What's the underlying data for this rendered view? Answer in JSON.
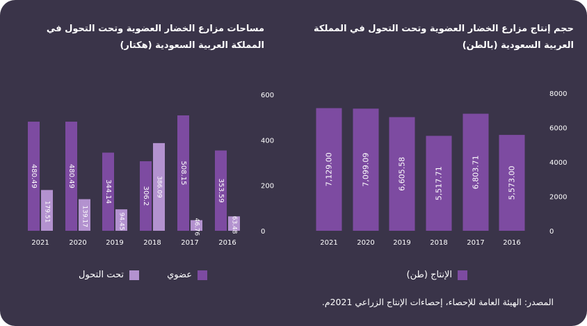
{
  "colors": {
    "background": "#3a3449",
    "organic": "#7d4ba1",
    "transition": "#b392cf",
    "production": "#7d4ba1"
  },
  "chart_data": [
    {
      "type": "bar",
      "title": "مساحات مزارع الخضار العضوية وتحت التحول في المملكة العربية السعودية (هكتار)",
      "categories": [
        "2021",
        "2020",
        "2019",
        "2018",
        "2017",
        "2016"
      ],
      "series": [
        {
          "name": "عضوي",
          "values": [
            480.49,
            480.49,
            344.14,
            306.2,
            508.15,
            353.59
          ],
          "labels": [
            "480.49",
            "480.49",
            "344.14",
            "306.2",
            "508.15",
            "353.59"
          ]
        },
        {
          "name": "تحت التحول",
          "values": [
            179.51,
            139.17,
            94.45,
            386.09,
            46.76,
            63.48
          ],
          "labels": [
            "179.51",
            "139.17",
            "94.45",
            "386.09",
            "46.76",
            "63.48"
          ]
        }
      ],
      "yticks": [
        "0",
        "200",
        "400",
        "600"
      ],
      "ylim": [
        0,
        600
      ],
      "axis_side": "right",
      "legend_position": "bottom"
    },
    {
      "type": "bar",
      "title": "حجم إنتاج مزارع الخضار العضوية وتحت التحول في المملكة العربية السعودية (بالطن)",
      "categories": [
        "2021",
        "2020",
        "2019",
        "2018",
        "2017",
        "2016"
      ],
      "series": [
        {
          "name": "الإنتاج (طن)",
          "values": [
            7129.0,
            7099.09,
            6605.58,
            5517.71,
            6803.71,
            5573.0
          ],
          "labels": [
            "7,129.00",
            "7,099.09",
            "6,605.58",
            "5,517.71",
            "6,803.71",
            "5,573.00"
          ]
        }
      ],
      "yticks": [
        "0",
        "2000",
        "4000",
        "6000",
        "8000"
      ],
      "ylim": [
        0,
        8000
      ],
      "axis_side": "right",
      "legend_position": "bottom"
    }
  ],
  "source": "المصدر: الهيئة العامة للإحصاء، إحصاءات الإنتاج الزراعي 2021م."
}
